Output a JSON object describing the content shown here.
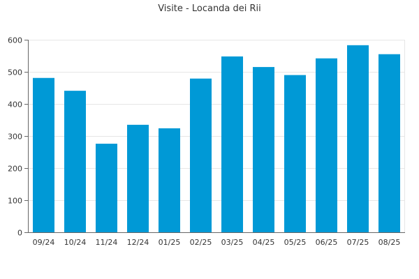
{
  "chart_data": {
    "type": "bar",
    "title": "Visite - Locanda dei Rii",
    "xlabel": "",
    "ylabel": "",
    "categories": [
      "09/24",
      "10/24",
      "11/24",
      "12/24",
      "01/25",
      "02/25",
      "03/25",
      "04/25",
      "05/25",
      "06/25",
      "07/25",
      "08/25"
    ],
    "values": [
      481,
      441,
      276,
      335,
      324,
      479,
      548,
      515,
      490,
      542,
      583,
      555
    ],
    "ylim": [
      0,
      600
    ],
    "yticks": [
      0,
      100,
      200,
      300,
      400,
      500,
      600
    ],
    "grid": "horizontal",
    "legend": "none",
    "bar_color": "#0099d6",
    "grid_color": "#e6e6e6",
    "axis_color": "#666666"
  }
}
